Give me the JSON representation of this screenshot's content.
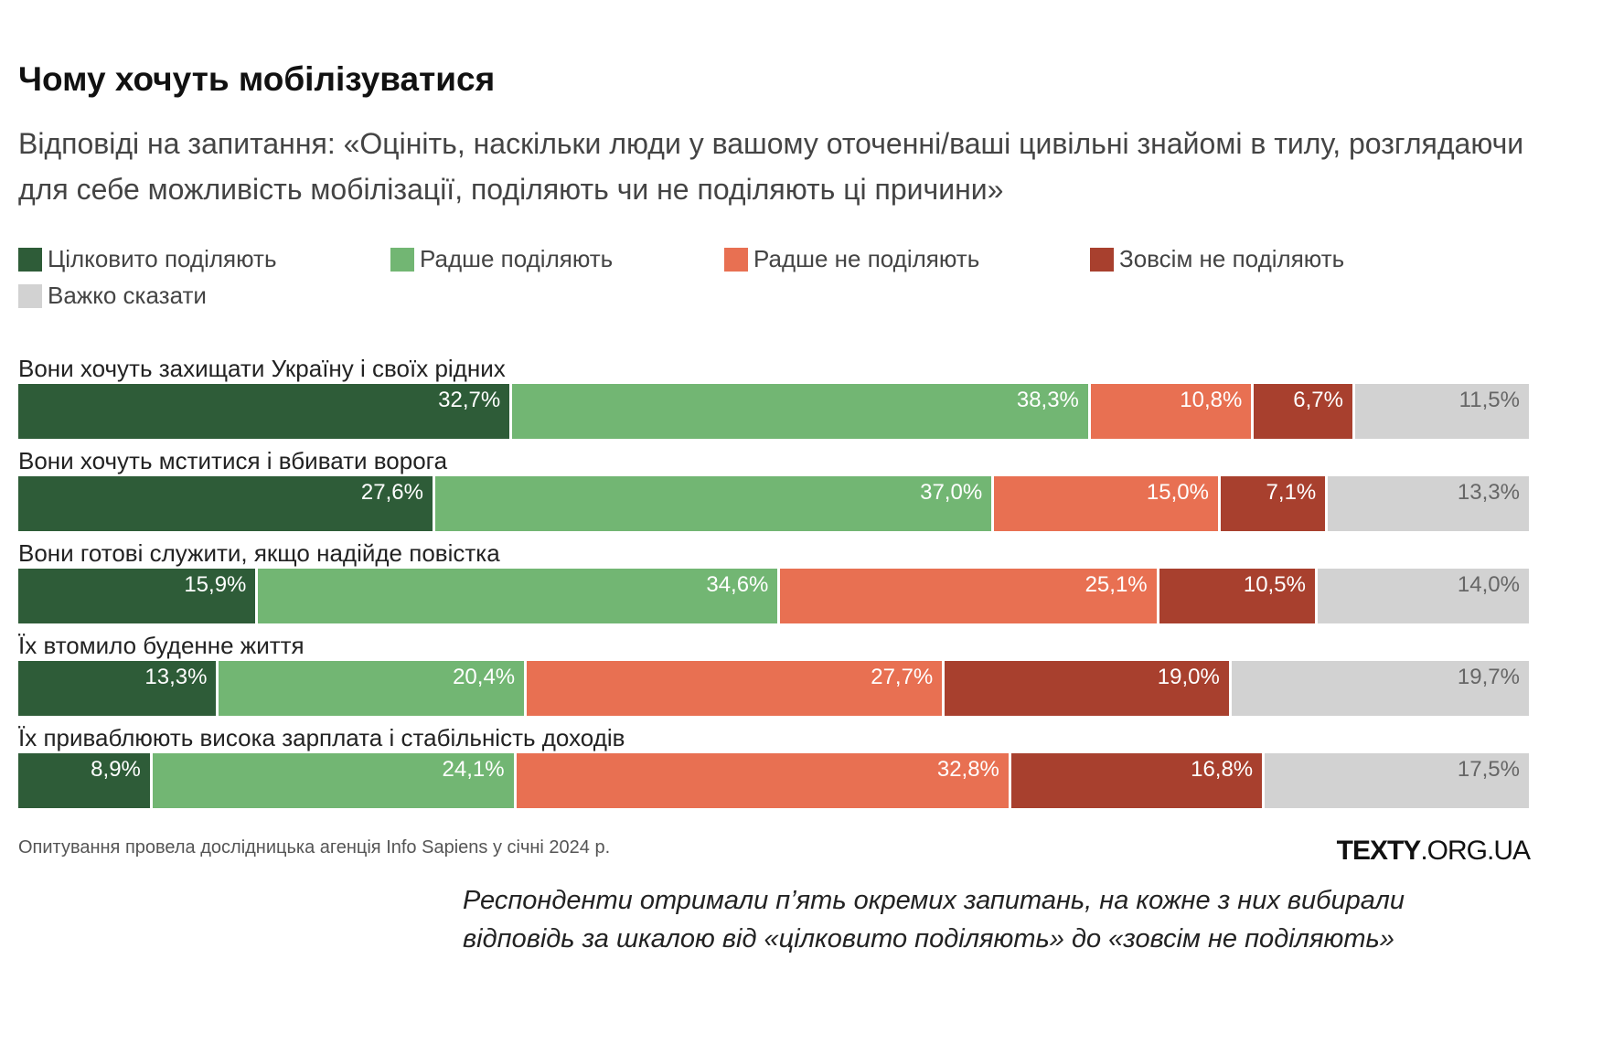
{
  "title": "Чому хочуть мобілізуватися",
  "subtitle": "Відповіді на запитання: «Оцініть, наскільки люди у вашому оточенні/ваші цивільні знайомі в тилу, розглядаючи для себе можливість мобілізації, поділяють чи не поділяють ці причини»",
  "source": "Опитування провела дослідницька агенція Info Sapiens у січні 2024 р.",
  "brand": {
    "bold": "TEXTY",
    "rest": ".ORG.UA"
  },
  "note": "Респонденти отримали п’ять окремих запитань, на кожне з них вибирали відповідь за шкалою від «цілковито поділяють» до «зовсім не поділяють»",
  "chart_data": {
    "type": "bar",
    "orientation": "horizontal",
    "stacked": true,
    "normalized": true,
    "title": "Чому хочуть мобілізуватися",
    "subtitle": "Відповіді на запитання: «Оцініть, наскільки люди у вашому оточенні/ваші цивільні знайомі в тилу, розглядаючи для себе можливість мобілізації, поділяють чи не поділяють ці причини»",
    "legend_position": "top",
    "grid": false,
    "categories": [
      "Вони хочуть захищати Україну і своїх рідних",
      "Вони хочуть мститися і вбивати ворога",
      "Вони готові служити, якщо надійде повістка",
      "Їх втомило буденне життя",
      "Їх приваблюють висока зарплата і стабільність доходів"
    ],
    "series": [
      {
        "name": "Цілковито поділяють",
        "color": "#2e5c38",
        "values": [
          32.7,
          27.6,
          15.9,
          13.3,
          8.9
        ],
        "labels": [
          "32,7%",
          "27,6%",
          "15,9%",
          "13,3%",
          "8,9%"
        ]
      },
      {
        "name": "Радше поділяють",
        "color": "#72b673",
        "values": [
          38.3,
          37.0,
          34.6,
          20.4,
          24.1
        ],
        "labels": [
          "38,3%",
          "37,0%",
          "34,6%",
          "20,4%",
          "24,1%"
        ]
      },
      {
        "name": "Радше не поділяють",
        "color": "#e87052",
        "values": [
          10.8,
          15.0,
          25.1,
          27.7,
          32.8
        ],
        "labels": [
          "10,8%",
          "15,0%",
          "25,1%",
          "27,7%",
          "32,8%"
        ]
      },
      {
        "name": "Зовсім не поділяють",
        "color": "#a8402e",
        "values": [
          6.7,
          7.1,
          10.5,
          19.0,
          16.8
        ],
        "labels": [
          "6,7%",
          "7,1%",
          "10,5%",
          "19,0%",
          "16,8%"
        ]
      },
      {
        "name": "Важко сказати",
        "color": "#d2d2d2",
        "values": [
          11.5,
          13.3,
          14.0,
          19.7,
          17.5
        ],
        "labels": [
          "11,5%",
          "13,3%",
          "14,0%",
          "19,7%",
          "17,5%"
        ]
      }
    ]
  }
}
